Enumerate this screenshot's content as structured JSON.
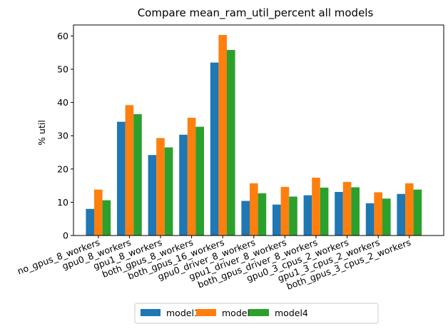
{
  "chart_data": {
    "type": "bar",
    "title": "Compare mean_ram_util_percent all models",
    "xlabel": "",
    "ylabel": "% util",
    "ylim": [
      0,
      63.3
    ],
    "yticks": [
      0,
      10,
      20,
      30,
      40,
      50,
      60
    ],
    "grid": false,
    "legend_position": "bottom-center",
    "categories": [
      "no_gpus_8_workers",
      "gpu0_8_workers",
      "gpu1_8_workers",
      "both_gpus_8_workers",
      "both_gpus_16_workers",
      "gpu0_driver_8_workers",
      "gpu1_driver_8_workers",
      "both_gpus_driver_8_workers",
      "gpu0_3_cpus_2_workers",
      "gpu1_3_cpus_2_workers",
      "both_gpus_3_cpus_2_workers"
    ],
    "series": [
      {
        "name": "model1",
        "color": "#1f77b4",
        "values": [
          8.0,
          34.2,
          24.2,
          30.3,
          52.0,
          10.4,
          9.3,
          12.1,
          13.1,
          9.7,
          12.5
        ]
      },
      {
        "name": "model3",
        "color": "#ff7f0e",
        "values": [
          13.8,
          39.2,
          29.3,
          35.4,
          60.3,
          15.7,
          14.6,
          17.4,
          16.1,
          13.0,
          15.7
        ]
      },
      {
        "name": "model4",
        "color": "#2ca02c",
        "values": [
          10.6,
          36.5,
          26.5,
          32.7,
          55.8,
          12.7,
          11.7,
          14.4,
          14.5,
          11.1,
          13.8
        ]
      }
    ]
  }
}
